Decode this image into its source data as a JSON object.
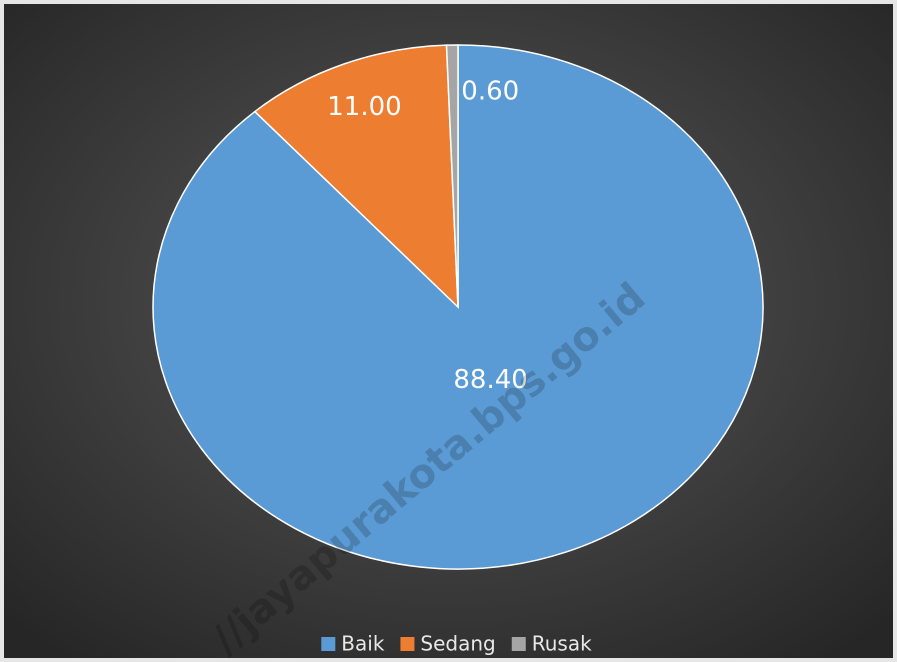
{
  "chart_data": {
    "type": "pie",
    "categories": [
      "Baik",
      "Sedang",
      "Rusak"
    ],
    "values": [
      88.4,
      11.0,
      0.6
    ],
    "value_labels": [
      "88.40",
      "11.00",
      "0.60"
    ],
    "colors": [
      "#5b9bd5",
      "#ed7d31",
      "#a5a5a5"
    ],
    "legend": "bottom",
    "watermark": "//jayapurakota.bps.go.id"
  }
}
